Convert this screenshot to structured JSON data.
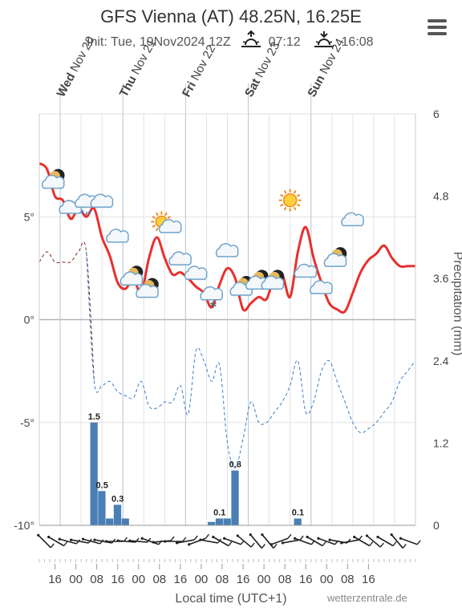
{
  "header": {
    "title": "GFS Vienna (AT) 48.25N, 16.25E",
    "init": "Init: Tue, 19Nov2024 12Z",
    "sunrise": "07:12",
    "sunset": "16:08",
    "icons": [
      "sunrise-icon",
      "sunset-icon",
      "menu-icon"
    ]
  },
  "footer": {
    "xlabel": "Local time (UTC+1)",
    "credit": "wetterzentrale.de"
  },
  "chart_data": {
    "type": "line",
    "title": "GFS Vienna (AT) 48.25N, 16.25E",
    "xlabel": "Local time (UTC+1)",
    "ylabel_right": "Precipitation (mm)",
    "day_labels": [
      {
        "day": "Wed",
        "date": "Nov 20"
      },
      {
        "day": "Thu",
        "date": "Nov 21"
      },
      {
        "day": "Fri",
        "date": "Nov 22"
      },
      {
        "day": "Sat",
        "date": "Nov 23"
      },
      {
        "day": "Sun",
        "date": "Nov 24"
      }
    ],
    "x_ticks": [
      "16",
      "00",
      "08",
      "16",
      "00",
      "08",
      "16",
      "00",
      "08",
      "16",
      "00",
      "08",
      "16",
      "00",
      "08",
      "16"
    ],
    "y_left_ticks": [
      "5°",
      "0°",
      "-5°",
      "-10°"
    ],
    "y_left_range": [
      -10,
      10
    ],
    "y_right_ticks": [
      "6",
      "4.8",
      "3.6",
      "2.4",
      "1.2",
      "0"
    ],
    "y_right_range": [
      0,
      6
    ],
    "hours_from_start": [
      0,
      3,
      6,
      9,
      12,
      15,
      18,
      21,
      24,
      27,
      30,
      33,
      36,
      39,
      42,
      45,
      48,
      51,
      54,
      57,
      60,
      63,
      66,
      69,
      72,
      75,
      78,
      81,
      84,
      87,
      90,
      93,
      96,
      99,
      102,
      105,
      108,
      111,
      114,
      117,
      120,
      123,
      126,
      129,
      132,
      135,
      138,
      141,
      144
    ],
    "series": [
      {
        "name": "Temperature",
        "color": "#e8302d",
        "style": "solid",
        "values": [
          7.6,
          7.3,
          6.0,
          5.8,
          4.9,
          5.4,
          5.0,
          5.4,
          4.0,
          3.1,
          1.8,
          1.5,
          2.0,
          1.3,
          3.0,
          4.0,
          3.0,
          2.2,
          2.3,
          2.0,
          1.6,
          1.3,
          0.6,
          1.7,
          2.5,
          2.0,
          0.5,
          0.8,
          1.1,
          1.0,
          2.1,
          2.2,
          1.1,
          3.3,
          4.5,
          3.0,
          1.8,
          0.8,
          0.5,
          0.4,
          1.3,
          2.3,
          2.9,
          3.2,
          3.6,
          3.0,
          2.6,
          2.6,
          2.6
        ]
      },
      {
        "name": "Dewpoint",
        "color": "#3b7ec8",
        "style": "dashed",
        "values": [
          2.8,
          3.3,
          2.8,
          2.8,
          2.8,
          3.3,
          3.3,
          -3.0,
          -3.2,
          -3.0,
          -3.5,
          -3.7,
          -3.8,
          -3.0,
          -4.2,
          -4.3,
          -4.0,
          -4.0,
          -3.2,
          -4.6,
          -1.5,
          -2.0,
          -3.0,
          -2.2,
          -6.0,
          -7.2,
          -5.8,
          -4.0,
          -5.0,
          -5.0,
          -4.5,
          -4.0,
          -3.2,
          -2.0,
          -4.5,
          -4.0,
          -2.5,
          -2.0,
          -3.0,
          -4.0,
          -5.0,
          -5.5,
          -5.3,
          -5.0,
          -4.5,
          -4.0,
          -3.0,
          -2.5,
          -2.0
        ]
      }
    ],
    "precipitation": [
      {
        "hour": 21,
        "mm": 1.5,
        "label": "1.5"
      },
      {
        "hour": 24,
        "mm": 0.5,
        "label": "0.5"
      },
      {
        "hour": 27,
        "mm": 0.1,
        "label": ""
      },
      {
        "hour": 30,
        "mm": 0.3,
        "label": "0.3"
      },
      {
        "hour": 33,
        "mm": 0.1,
        "label": ""
      },
      {
        "hour": 66,
        "mm": 0.05,
        "label": ""
      },
      {
        "hour": 69,
        "mm": 0.1,
        "label": "0.1"
      },
      {
        "hour": 72,
        "mm": 0.1,
        "label": ""
      },
      {
        "hour": 75,
        "mm": 0.8,
        "label": "0.8"
      },
      {
        "hour": 99,
        "mm": 0.1,
        "label": "0.1"
      }
    ],
    "weather_icons": [
      {
        "hour": 6,
        "t": 6.7,
        "icon": "cloud-moon"
      },
      {
        "hour": 12,
        "t": 5.4,
        "icon": "cloud"
      },
      {
        "hour": 18,
        "t": 5.7,
        "icon": "rain-cloud"
      },
      {
        "hour": 24,
        "t": 5.7,
        "icon": "cloud"
      },
      {
        "hour": 30,
        "t": 4.0,
        "icon": "cloud"
      },
      {
        "hour": 36,
        "t": 2.0,
        "icon": "cloud-moon"
      },
      {
        "hour": 42,
        "t": 1.4,
        "icon": "cloud-moon"
      },
      {
        "hour": 48,
        "t": 4.6,
        "icon": "sun-cloud"
      },
      {
        "hour": 54,
        "t": 2.9,
        "icon": "cloud"
      },
      {
        "hour": 60,
        "t": 2.2,
        "icon": "cloud"
      },
      {
        "hour": 66,
        "t": 1.2,
        "icon": "snow-cloud"
      },
      {
        "hour": 72,
        "t": 3.3,
        "icon": "cloud"
      },
      {
        "hour": 78,
        "t": 1.5,
        "icon": "cloud-moon"
      },
      {
        "hour": 84,
        "t": 1.8,
        "icon": "cloud-moon"
      },
      {
        "hour": 90,
        "t": 1.8,
        "icon": "cloud-moon"
      },
      {
        "hour": 96,
        "t": 5.8,
        "icon": "sun"
      },
      {
        "hour": 102,
        "t": 2.3,
        "icon": "cloud"
      },
      {
        "hour": 108,
        "t": 1.5,
        "icon": "cloud"
      },
      {
        "hour": 114,
        "t": 2.9,
        "icon": "cloud-moon"
      },
      {
        "hour": 120,
        "t": 4.8,
        "icon": "cloud"
      }
    ],
    "wind_directions_deg": [
      315,
      300,
      285,
      280,
      285,
      280,
      270,
      275,
      275,
      290,
      265,
      270,
      260,
      250,
      280,
      300,
      290,
      310,
      320,
      320,
      250,
      260,
      290,
      300,
      290,
      280,
      260,
      300,
      310,
      300,
      320,
      290
    ],
    "grid": true
  }
}
